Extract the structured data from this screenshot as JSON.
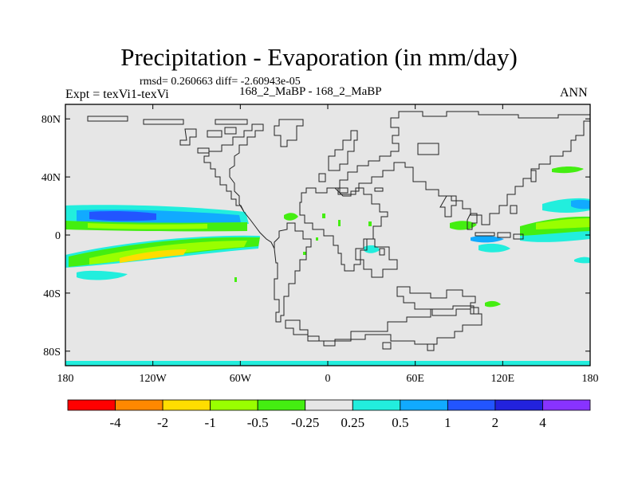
{
  "title": "Precipitation - Evaporation (in mm/day)",
  "stats": "rmsd= 0.260663 diff= -2.60943e-05",
  "left_label": "Expt = texVi1-texVi",
  "center_label": "168_2_MaBP - 168_2_MaBP",
  "right_label": "ANN",
  "lat_ticks": [
    {
      "value": 80,
      "label": "80N"
    },
    {
      "value": 40,
      "label": "40N"
    },
    {
      "value": 0,
      "label": "0"
    },
    {
      "value": -40,
      "label": "40S"
    },
    {
      "value": -80,
      "label": "80S"
    }
  ],
  "lon_ticks": [
    {
      "value": -180,
      "label": "180"
    },
    {
      "value": -120,
      "label": "120W"
    },
    {
      "value": -60,
      "label": "60W"
    },
    {
      "value": 0,
      "label": "0"
    },
    {
      "value": 60,
      "label": "60E"
    },
    {
      "value": 120,
      "label": "120E"
    },
    {
      "value": 180,
      "label": "180"
    }
  ],
  "colorbar": {
    "colors": [
      "#ff0000",
      "#ff8800",
      "#ffdd00",
      "#99ff00",
      "#44ee11",
      "#e6e6e6",
      "#22eedd",
      "#11aaff",
      "#2255ff",
      "#2222dd",
      "#8833ff"
    ],
    "labels": [
      "-4",
      "-2",
      "-1",
      "-0.5",
      "-0.25",
      "0.25",
      "0.5",
      "1",
      "2",
      "4"
    ]
  },
  "colors": {
    "background_field": "#e6e6e6",
    "cyan": "#22eedd",
    "blue": "#11aaff",
    "green": "#44ee11",
    "lightgreen": "#99ff00",
    "yellow": "#ffdd00"
  }
}
